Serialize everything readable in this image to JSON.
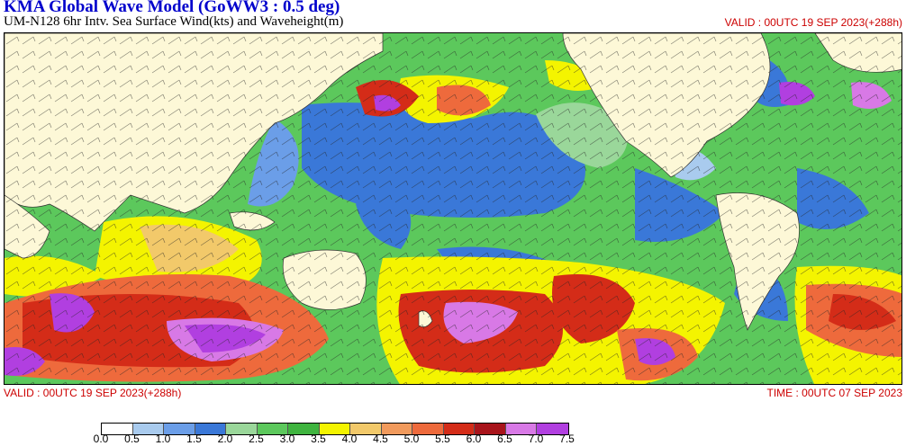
{
  "title": "KMA  Global Wave Model (GoWW3 : 0.5 deg)",
  "subtitle": "UM-N128  6hr Intv. Sea Surface Wind(kts) and Waveheight(m)",
  "valid_top": "VALID : 00UTC 19 SEP 2023(+288h)",
  "valid_bottom": "VALID : 00UTC 19 SEP 2023(+288h)",
  "time_bottom": "TIME : 00UTC 07 SEP 2023",
  "colorbar": {
    "labels": [
      "0.0",
      "0.5",
      "1.0",
      "1.5",
      "2.0",
      "2.5",
      "3.0",
      "3.5",
      "4.0",
      "4.5",
      "5.0",
      "5.5",
      "6.0",
      "6.5",
      "7.0",
      "7.5"
    ],
    "colors": [
      "#ffffff",
      "#a9cbee",
      "#6b9ee8",
      "#3a78d8",
      "#9ad79a",
      "#5cc85c",
      "#3fb43f",
      "#f4f400",
      "#f2c96a",
      "#f19a5c",
      "#ee6a3c",
      "#d42c18",
      "#a8141b",
      "#d879e6",
      "#b13fe0"
    ]
  },
  "land_color": "#fdf8d7",
  "ocean_base_color": "#5cc85c"
}
